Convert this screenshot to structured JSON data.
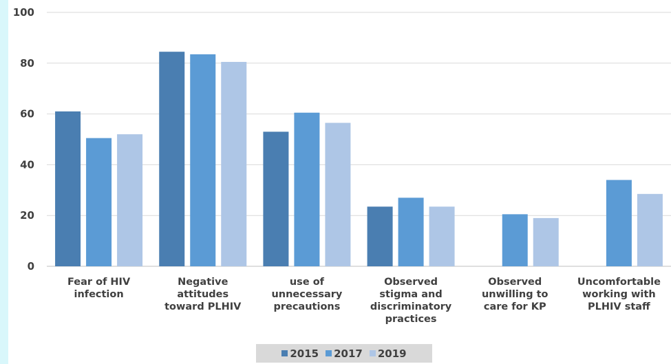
{
  "chart_data": {
    "type": "bar",
    "title": "",
    "xlabel": "",
    "ylabel": "",
    "ylim": [
      0,
      100
    ],
    "yticks": [
      "0",
      "20",
      "40",
      "60",
      "80",
      "100"
    ],
    "grid": true,
    "legend_position": "bottom",
    "categories": [
      [
        "Fear of HIV",
        "infection"
      ],
      [
        "Negative",
        "attitudes",
        "toward PLHIV"
      ],
      [
        "use of",
        "unnecessary",
        "precautions"
      ],
      [
        "Observed",
        "stigma and",
        "discriminatory",
        "practices"
      ],
      [
        "Observed",
        "unwilling to",
        "care for KP"
      ],
      [
        "Uncomfortable",
        "working with",
        "PLHIV staff"
      ]
    ],
    "series": [
      {
        "name": "2015",
        "color": "#4a7eb1",
        "values": [
          61,
          84.5,
          53,
          23.5,
          null,
          null
        ]
      },
      {
        "name": "2017",
        "color": "#5b9bd5",
        "values": [
          50.5,
          83.5,
          60.5,
          27,
          20.5,
          34
        ]
      },
      {
        "name": "2019",
        "color": "#aec6e6",
        "values": [
          52,
          80.5,
          56.5,
          23.5,
          19,
          28.5
        ]
      }
    ]
  }
}
